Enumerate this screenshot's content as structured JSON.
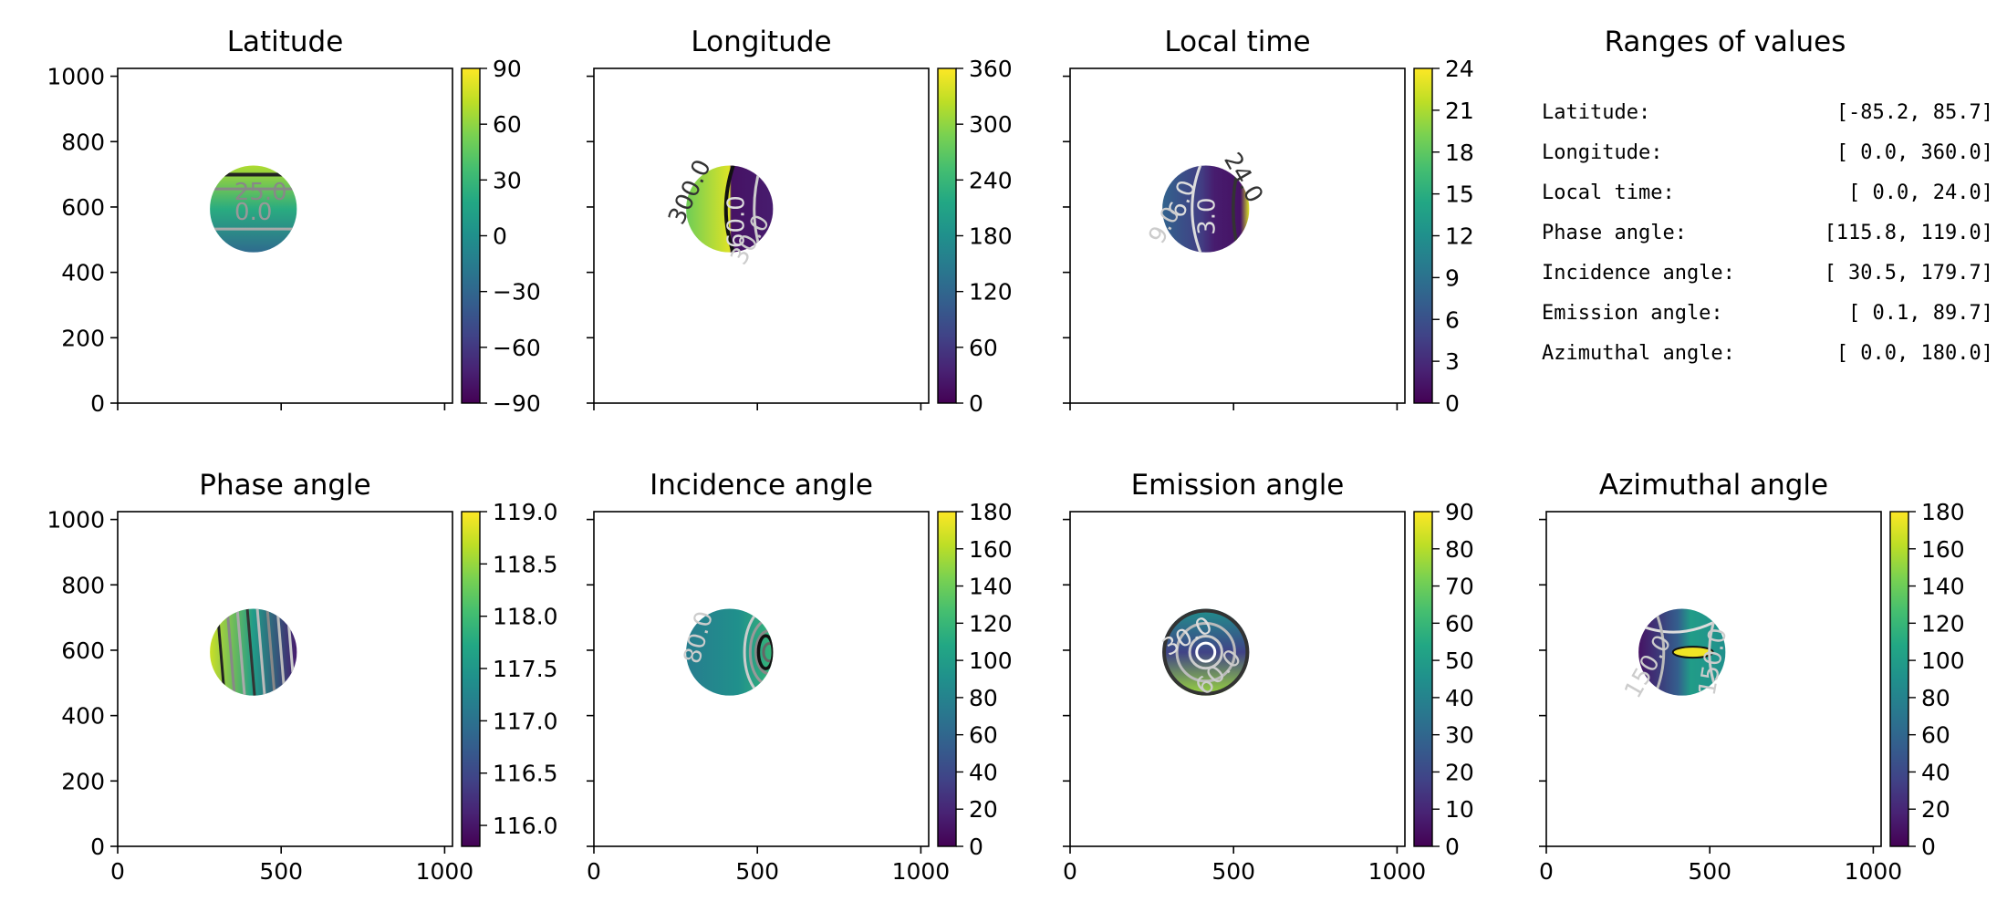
{
  "chart_data": [
    {
      "type": "heatmap",
      "title": "Latitude",
      "xlim": [
        0,
        1024
      ],
      "ylim": [
        0,
        1024
      ],
      "xticks": [],
      "yticks": [
        0,
        200,
        400,
        600,
        800,
        1000
      ],
      "colorbar": {
        "range": [
          -90,
          90
        ],
        "ticks": [
          90,
          60,
          30,
          0,
          "−30",
          "−60",
          "−90"
        ]
      },
      "disk": {
        "cx": 415,
        "cy": 594,
        "r": 133
      },
      "field": "lat",
      "contour_labels": [
        {
          "text": "25.0",
          "color": "#888888"
        },
        {
          "text": "0.0",
          "color": "#999999"
        }
      ],
      "value_range": [
        -85.2,
        85.7
      ]
    },
    {
      "type": "heatmap",
      "title": "Longitude",
      "xlim": [
        0,
        1024
      ],
      "ylim": [
        0,
        1024
      ],
      "xticks": [],
      "yticks": [],
      "colorbar": {
        "range": [
          0,
          360
        ],
        "ticks": [
          360,
          300,
          240,
          180,
          120,
          60,
          0
        ]
      },
      "disk": {
        "cx": 415,
        "cy": 594,
        "r": 133
      },
      "field": "lon",
      "contour_labels": [
        {
          "text": "300.0",
          "color": "#333333"
        },
        {
          "text": "60.0",
          "color": "#dddddd"
        },
        {
          "text": "30.0",
          "color": "#cccccc"
        }
      ],
      "value_range": [
        0.0,
        360.0
      ]
    },
    {
      "type": "heatmap",
      "title": "Local time",
      "xlim": [
        0,
        1024
      ],
      "ylim": [
        0,
        1024
      ],
      "xticks": [],
      "yticks": [],
      "colorbar": {
        "range": [
          0,
          24
        ],
        "ticks": [
          24,
          21,
          18,
          15,
          12,
          9,
          6,
          3,
          0
        ]
      },
      "disk": {
        "cx": 415,
        "cy": 594,
        "r": 133
      },
      "field": "lt",
      "contour_labels": [
        {
          "text": "6.0",
          "color": "#dddddd"
        },
        {
          "text": "3.0",
          "color": "#dddddd"
        },
        {
          "text": "24.0",
          "color": "#333333"
        },
        {
          "text": "9.0",
          "color": "#cccccc"
        }
      ],
      "value_range": [
        0.0,
        24.0
      ]
    },
    {
      "type": "heatmap",
      "title": "Phase angle",
      "xlim": [
        0,
        1024
      ],
      "ylim": [
        0,
        1024
      ],
      "xticks": [],
      "yticks": [
        0,
        200,
        400,
        600,
        800,
        1000
      ],
      "colorbar": {
        "range": [
          115.8,
          119.0
        ],
        "ticks": [
          "119.0",
          "118.5",
          "118.0",
          "117.5",
          "117.0",
          "116.5",
          "116.0"
        ],
        "tick_values": [
          119.0,
          118.5,
          118.0,
          117.5,
          117.0,
          116.5,
          116.0
        ]
      },
      "disk": {
        "cx": 415,
        "cy": 594,
        "r": 133
      },
      "field": "phase",
      "value_range": [
        115.8,
        119.0
      ]
    },
    {
      "type": "heatmap",
      "title": "Incidence angle",
      "xlim": [
        0,
        1024
      ],
      "ylim": [
        0,
        1024
      ],
      "xticks": [],
      "yticks": [],
      "colorbar": {
        "range": [
          0,
          180
        ],
        "ticks": [
          180,
          160,
          140,
          120,
          100,
          80,
          60,
          40,
          20,
          0
        ]
      },
      "disk": {
        "cx": 415,
        "cy": 594,
        "r": 133
      },
      "field": "inc",
      "contour_labels": [
        {
          "text": "80.0",
          "color": "#cccccc"
        }
      ],
      "value_range": [
        30.5,
        179.7
      ]
    },
    {
      "type": "heatmap",
      "title": "Emission angle",
      "xlim": [
        0,
        1024
      ],
      "ylim": [
        0,
        1024
      ],
      "xticks": [],
      "yticks": [],
      "colorbar": {
        "range": [
          0,
          90
        ],
        "ticks": [
          90,
          80,
          70,
          60,
          50,
          40,
          30,
          20,
          10,
          0
        ]
      },
      "disk": {
        "cx": 415,
        "cy": 594,
        "r": 133
      },
      "field": "emi",
      "contour_labels": [
        {
          "text": "30.0",
          "color": "#dddddd"
        },
        {
          "text": "60.0",
          "color": "#cccccc"
        }
      ],
      "value_range": [
        0.1,
        89.7
      ]
    },
    {
      "type": "heatmap",
      "title": "Azimuthal angle",
      "xlim": [
        0,
        1024
      ],
      "ylim": [
        0,
        1024
      ],
      "xticks": [],
      "yticks": [],
      "colorbar": {
        "range": [
          0,
          180
        ],
        "ticks": [
          180,
          160,
          140,
          120,
          100,
          80,
          60,
          40,
          20,
          0
        ]
      },
      "disk": {
        "cx": 415,
        "cy": 594,
        "r": 133
      },
      "field": "azi",
      "contour_labels": [
        {
          "text": "150.0",
          "color": "#cccccc"
        },
        {
          "text": "150.0",
          "color": "#cccccc"
        }
      ],
      "value_range": [
        0.0,
        180.0
      ]
    }
  ],
  "bottom_row_xticks": [
    0,
    500,
    1000
  ],
  "ranges_panel": {
    "title": "Ranges of values",
    "rows": [
      {
        "label": "Latitude:",
        "value": "[-85.2,  85.7]"
      },
      {
        "label": "Longitude:",
        "value": "[  0.0, 360.0]"
      },
      {
        "label": "Local time:",
        "value": "[  0.0,  24.0]"
      },
      {
        "label": "Phase angle:",
        "value": "[115.8, 119.0]"
      },
      {
        "label": "Incidence angle:",
        "value": "[ 30.5, 179.7]"
      },
      {
        "label": "Emission angle:",
        "value": "[  0.1,  89.7]"
      },
      {
        "label": "Azimuthal angle:",
        "value": "[  0.0, 180.0]"
      }
    ]
  },
  "colormap": "viridis"
}
